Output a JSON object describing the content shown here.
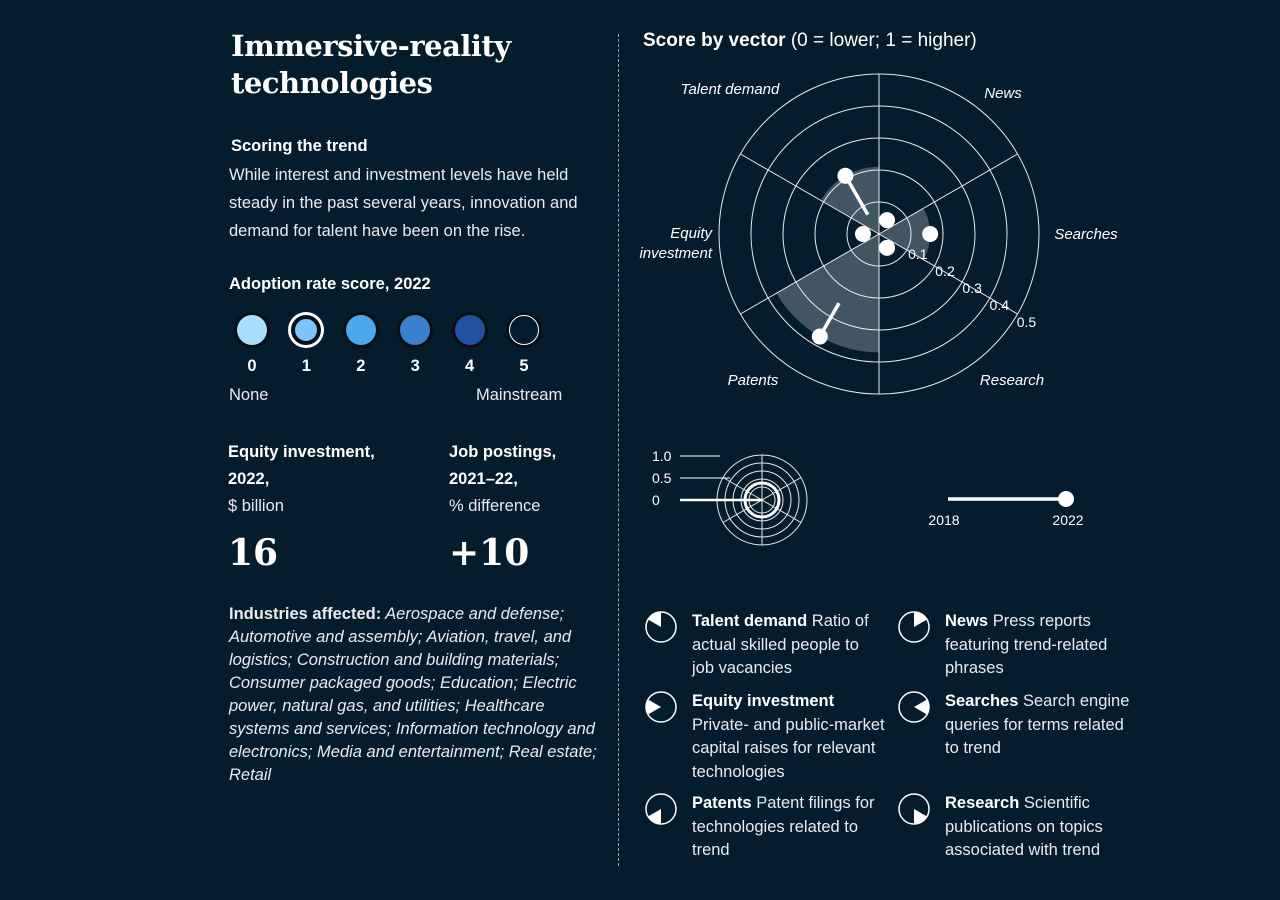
{
  "title": "Immersive-reality technologies",
  "scoring": {
    "heading": "Scoring the trend",
    "text": "While interest and investment levels have held steady in the past several years, innovation and demand for talent have been on the rise."
  },
  "adoption": {
    "heading": "Adoption rate score, 2022",
    "levels": [
      "0",
      "1",
      "2",
      "3",
      "4",
      "5"
    ],
    "colors": [
      "#a8defc",
      "#7ec4f7",
      "#4aa8ec",
      "#3b80cc",
      "#2251a0",
      "#051c2c"
    ],
    "selected": "1",
    "low_label": "None",
    "high_label": "Mainstream"
  },
  "equity": {
    "label_line1": "Equity investment,",
    "label_line2": "2022,",
    "unit": "$ billion",
    "value": "16"
  },
  "jobs": {
    "label_line1": "Job postings,",
    "label_line2": "2021–22,",
    "unit": "% difference",
    "value": "+10"
  },
  "industries": {
    "label": "Industries affected:",
    "text": " Aerospace and defense; Automotive and assembly; Aviation, travel, and logistics; Construction and building materials; Consumer packaged goods; Education; Electric power, natural gas, and utilities; Healthcare systems and services; Information technology and electronics; Media and entertainment; Real estate; Retail"
  },
  "chart_title": {
    "bold": "Score by vector",
    "rest": " (0 = lower; 1 = higher)"
  },
  "chart_data": {
    "type": "radar",
    "title": "Score by vector (0 = lower; 1 = higher)",
    "ring_labels": [
      "0.1",
      "0.2",
      "0.3",
      "0.4",
      "0.5"
    ],
    "rmax": 0.5,
    "vectors": [
      {
        "name": "Talent demand",
        "score_2018": 0.07,
        "score_2022": 0.21
      },
      {
        "name": "News",
        "score_2018": 0.05,
        "score_2022": 0.05
      },
      {
        "name": "Searches",
        "score_2018": 0.16,
        "score_2022": 0.16
      },
      {
        "name": "Research",
        "score_2018": 0.05,
        "score_2022": 0.05
      },
      {
        "name": "Patents",
        "score_2018": 0.25,
        "score_2022": 0.37
      },
      {
        "name": "Equity investment",
        "score_2018": 0.05,
        "score_2022": 0.05
      }
    ],
    "shade": [
      {
        "sector": "Talent demand",
        "value": 0.21
      },
      {
        "sector": "Searches",
        "value": 0.16
      },
      {
        "sector": "Patents",
        "value": 0.37
      }
    ]
  },
  "key": {
    "scale_labels": [
      "1.0",
      "0.5",
      "0"
    ],
    "year_start": "2018",
    "year_end": "2022"
  },
  "legend": [
    {
      "name": "Talent demand",
      "desc": " Ratio of actual skilled people to job vacancies"
    },
    {
      "name": "News",
      "desc": " Press reports featuring trend-related phrases"
    },
    {
      "name": "Equity investment",
      "desc": " Private- and public-market capital raises for relevant technologies"
    },
    {
      "name": "Searches",
      "desc": " Search engine queries for terms related to trend"
    },
    {
      "name": "Patents",
      "desc": " Patent filings for technologies related to trend"
    },
    {
      "name": "Research",
      "desc": " Scientific publications on topics associated with trend"
    }
  ]
}
